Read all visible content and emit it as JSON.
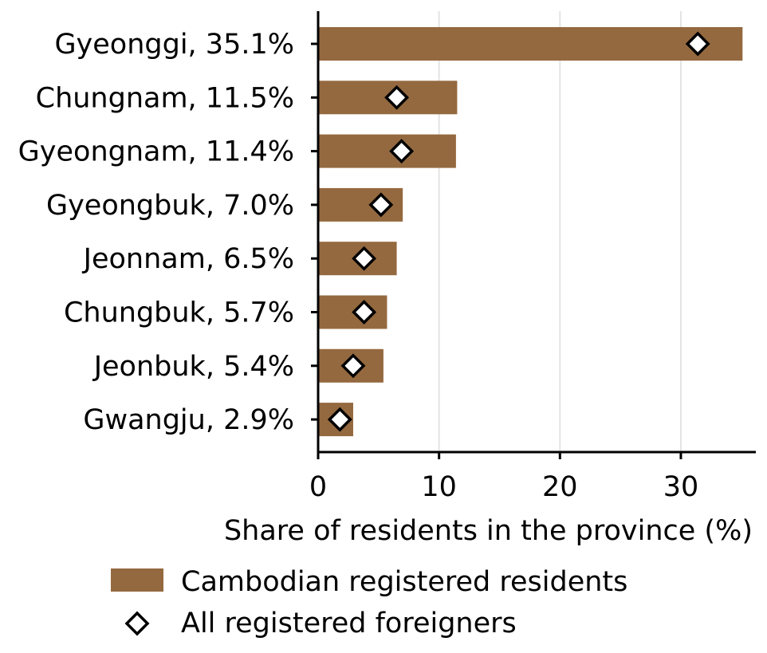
{
  "chart_data": {
    "type": "bar",
    "orientation": "horizontal",
    "categories": [
      "Gyeonggi, 35.1%",
      "Chungnam, 11.5%",
      "Gyeongnam, 11.4%",
      "Gyeongbuk, 7.0%",
      "Jeonnam, 6.5%",
      "Chungbuk, 5.7%",
      "Jeonbuk, 5.4%",
      "Gwangju, 2.9%"
    ],
    "series": [
      {
        "name": "Cambodian registered residents",
        "marker": "bar",
        "color": "#94693f",
        "values": [
          35.1,
          11.5,
          11.4,
          7.0,
          6.5,
          5.7,
          5.4,
          2.9
        ]
      },
      {
        "name": "All registered foreigners",
        "marker": "diamond",
        "color": "#ffffff",
        "edge_color": "#000000",
        "values": [
          31.4,
          6.5,
          6.9,
          5.2,
          3.8,
          3.8,
          2.9,
          1.8
        ]
      }
    ],
    "xlabel": "Share of residents in the province (%)",
    "ylabel": "",
    "xlim": [
      0,
      36.2
    ],
    "xticks": [
      0,
      10,
      20,
      30
    ],
    "xtick_labels": [
      "0",
      "10",
      "20",
      "30"
    ],
    "grid": "vertical",
    "legend_position": "bottom"
  }
}
